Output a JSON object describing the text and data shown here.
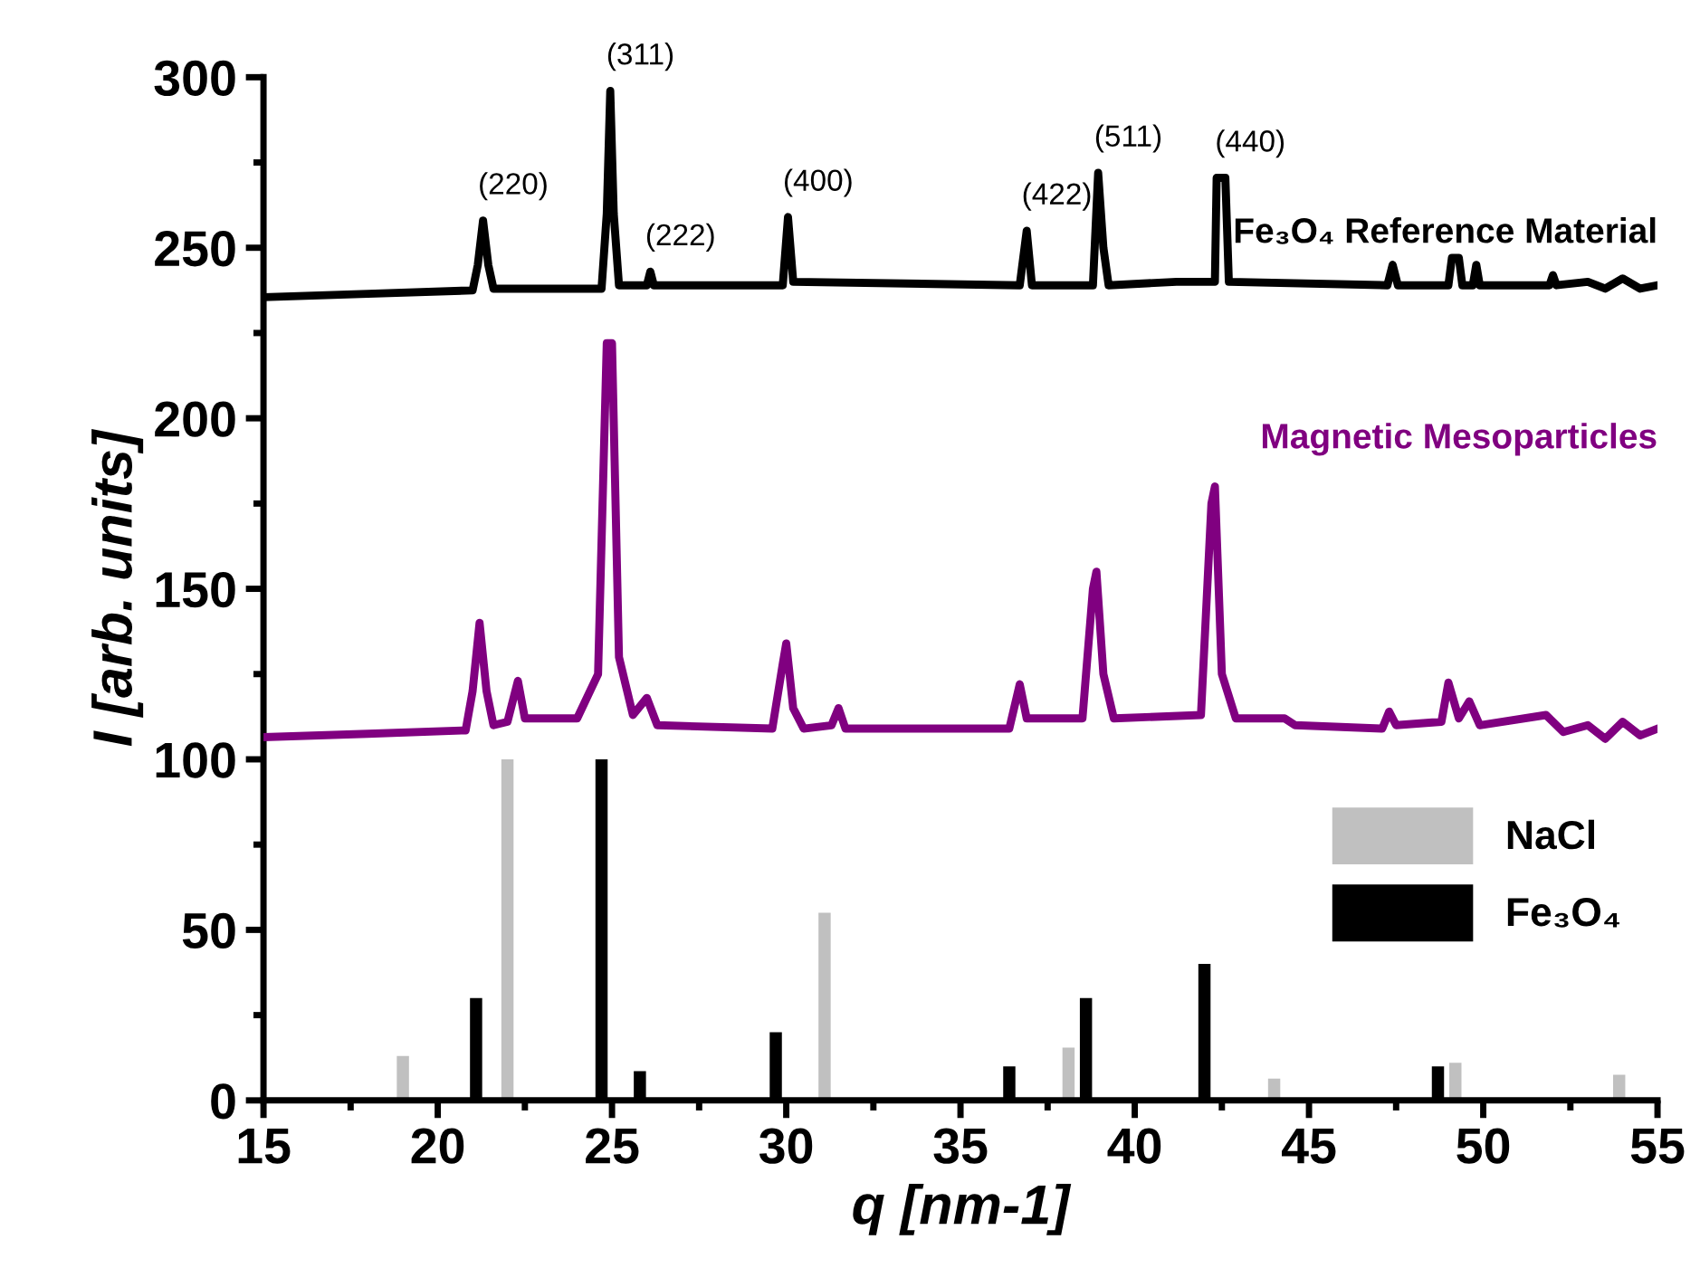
{
  "chart_data": {
    "type": "line",
    "xlabel": "q [nm-1]",
    "ylabel": "I [arb. units]",
    "xlim": [
      15,
      55
    ],
    "xticks": [
      15,
      20,
      25,
      30,
      35,
      40,
      45,
      50,
      55
    ],
    "ylim": [
      0,
      300
    ],
    "yticks": [
      0,
      50,
      100,
      150,
      200,
      250,
      300
    ],
    "grid": false,
    "legend": "lower right",
    "series": [
      {
        "name": "Fe₃O₄ Reference Material",
        "color": "#000000",
        "x": [
          15,
          18,
          21.0,
          21.15,
          21.3,
          21.45,
          21.6,
          24.7,
          24.85,
          24.95,
          25.05,
          25.2,
          26.0,
          26.1,
          26.2,
          29.9,
          30.05,
          30.2,
          36.7,
          36.9,
          37.05,
          38.8,
          38.95,
          39.1,
          39.25,
          41.2,
          42.3,
          42.35,
          42.6,
          42.7,
          47.25,
          47.4,
          47.55,
          49.0,
          49.1,
          49.3,
          49.4,
          49.7,
          49.8,
          49.9,
          51.9,
          52.0,
          52.1,
          53,
          53.5,
          54,
          54.5,
          55
        ],
        "values": [
          235.5,
          236.5,
          237.5,
          245,
          258,
          245,
          238,
          238,
          260,
          296,
          260,
          239,
          239,
          243,
          239,
          239,
          259,
          240,
          239,
          255,
          239,
          239,
          272,
          250,
          239,
          240,
          240,
          270.5,
          270.5,
          240,
          239,
          245,
          239,
          239,
          247,
          247,
          239,
          239,
          245,
          239,
          239,
          242,
          239,
          240,
          238,
          241,
          238,
          239
        ]
      },
      {
        "name": "Magnetic Mesoparticles",
        "color": "#800080",
        "x": [
          15,
          18,
          20.8,
          21.0,
          21.2,
          21.4,
          21.6,
          22.0,
          22.3,
          22.5,
          24.0,
          24.6,
          24.85,
          25.0,
          25.2,
          25.6,
          26.0,
          26.3,
          29.6,
          29.9,
          30.0,
          30.2,
          30.5,
          31.3,
          31.5,
          31.7,
          36.4,
          36.7,
          36.9,
          38.5,
          38.8,
          38.9,
          39.1,
          39.4,
          41.9,
          42.2,
          42.3,
          42.5,
          42.9,
          44.3,
          44.6,
          47.1,
          47.3,
          47.5,
          48.8,
          49.0,
          49.3,
          49.6,
          49.9,
          51.8,
          52.3,
          53,
          53.5,
          54,
          54.5,
          55
        ],
        "values": [
          106.5,
          107.5,
          108.5,
          120,
          140,
          120,
          110,
          111,
          123,
          112,
          112,
          125,
          222,
          222,
          130,
          113,
          118,
          110,
          109,
          128,
          134,
          115,
          109,
          110,
          115,
          109,
          109,
          122,
          112,
          112,
          150,
          155,
          125,
          112,
          113,
          175,
          180,
          125,
          112,
          112,
          110,
          109,
          114,
          110,
          111,
          122.5,
          112,
          117,
          110,
          113,
          108,
          110,
          106,
          111,
          107,
          109
        ]
      },
      {
        "name": "NaCl",
        "type": "bar",
        "color": "#c0c0c0",
        "x": [
          19.0,
          22.0,
          31.1,
          38.1,
          44.0,
          49.2,
          53.9
        ],
        "values": [
          13,
          100,
          55,
          15.5,
          6.4,
          11,
          7.5
        ]
      },
      {
        "name": "Fe₃O₄",
        "type": "bar",
        "color": "#000000",
        "x": [
          21.1,
          24.7,
          25.8,
          29.7,
          36.4,
          38.6,
          42.0,
          48.7
        ],
        "values": [
          30,
          100,
          8.6,
          20,
          10,
          30,
          40,
          10
        ]
      }
    ],
    "annotations": [
      {
        "text": "(220)",
        "x": 21.3,
        "y": 258
      },
      {
        "text": "(311)",
        "x": 24.95,
        "y": 296
      },
      {
        "text": "(222)",
        "x": 26.1,
        "y": 243
      },
      {
        "text": "(400)",
        "x": 30.05,
        "y": 259
      },
      {
        "text": "(422)",
        "x": 36.9,
        "y": 255
      },
      {
        "text": "(511)",
        "x": 38.95,
        "y": 272
      },
      {
        "text": "(440)",
        "x": 42.45,
        "y": 270.5
      }
    ]
  }
}
